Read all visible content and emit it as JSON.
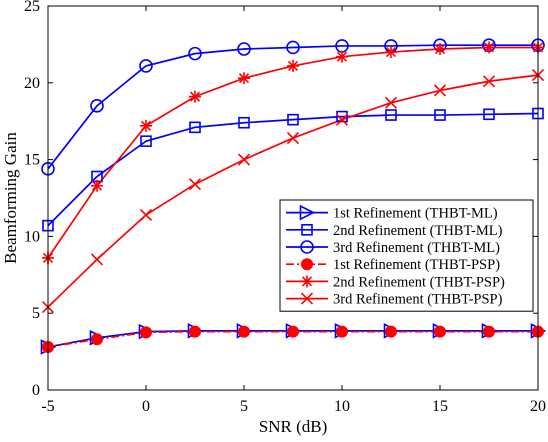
{
  "chart_data": {
    "type": "line",
    "title": "",
    "xlabel": "SNR (dB)",
    "ylabel": "Beamforming Gain",
    "xlim": [
      -5,
      20
    ],
    "ylim": [
      0,
      25
    ],
    "xticks": [
      -5,
      0,
      5,
      10,
      15,
      20
    ],
    "yticks": [
      0,
      5,
      10,
      15,
      20,
      25
    ],
    "grid": false,
    "legend_position": "lower-right",
    "x": [
      -5,
      -2.5,
      0,
      2.5,
      5,
      7.5,
      10,
      12.5,
      15,
      17.5,
      20
    ],
    "series": [
      {
        "name": "1st Refinement (THBT-ML)",
        "color": "#0000ff",
        "marker": "triangle-right",
        "dash": "solid",
        "values": [
          2.8,
          3.4,
          3.8,
          3.85,
          3.85,
          3.85,
          3.85,
          3.85,
          3.85,
          3.85,
          3.85
        ]
      },
      {
        "name": "2nd Refinement (THBT-ML)",
        "color": "#0000ff",
        "marker": "square",
        "dash": "solid",
        "values": [
          10.7,
          13.9,
          16.2,
          17.1,
          17.4,
          17.6,
          17.8,
          17.9,
          17.9,
          17.95,
          18.0
        ]
      },
      {
        "name": "3rd Refinement (THBT-ML)",
        "color": "#0000ff",
        "marker": "circle",
        "dash": "solid",
        "values": [
          14.4,
          18.5,
          21.1,
          21.9,
          22.2,
          22.3,
          22.4,
          22.4,
          22.45,
          22.45,
          22.45
        ]
      },
      {
        "name": "1st Refinement (THBT-PSP)",
        "color": "#ff0000",
        "marker": "filled-circle",
        "dash": "dashdot",
        "values": [
          2.8,
          3.3,
          3.75,
          3.8,
          3.8,
          3.8,
          3.8,
          3.8,
          3.8,
          3.8,
          3.8
        ]
      },
      {
        "name": "2nd Refinement (THBT-PSP)",
        "color": "#ff0000",
        "marker": "asterisk",
        "dash": "solid",
        "values": [
          8.6,
          13.3,
          17.2,
          19.1,
          20.3,
          21.1,
          21.7,
          22.0,
          22.2,
          22.3,
          22.3
        ]
      },
      {
        "name": "3rd Refinement (THBT-PSP)",
        "color": "#ff0000",
        "marker": "x",
        "dash": "solid",
        "values": [
          5.4,
          8.5,
          11.4,
          13.4,
          15.0,
          16.4,
          17.6,
          18.7,
          19.5,
          20.1,
          20.5
        ]
      }
    ]
  }
}
